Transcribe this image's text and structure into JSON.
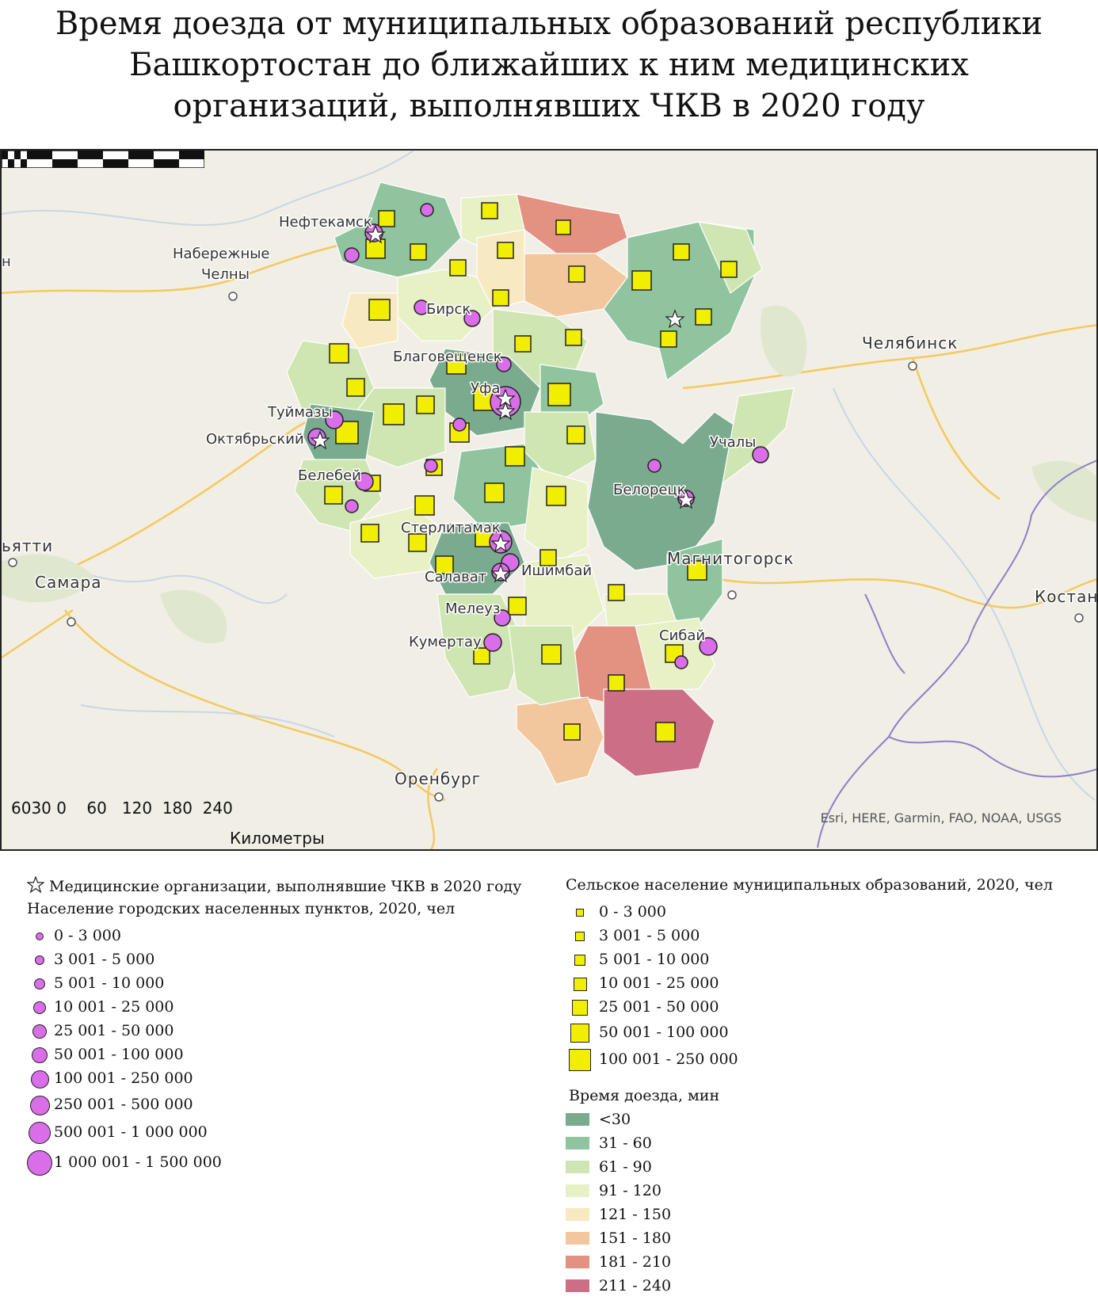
{
  "title": [
    "Время доезда от муниципальных образований республики",
    "Башкортостан до ближайших к ним медицинских",
    "организаций, выполнявших ЧКВ в 2020 году"
  ],
  "map": {
    "city_labels": [
      "Нефтекамск",
      "Набережные",
      "Челны",
      "Бирск",
      "Благовещенск",
      "Уфа",
      "Туймазы",
      "Октябрьский",
      "Белебей",
      "Стерлитамак",
      "Салават",
      "Ишимбай",
      "Мелеуз",
      "Кумертау",
      "Белорецк",
      "Учалы",
      "Сибай",
      "Магнитогорск",
      "Челябинск",
      "Самара",
      "Оренбург",
      "ьятти",
      "Костан",
      "н"
    ],
    "scale_numbers": "6030 0    60   120  180  240",
    "scale_unit": "Километры",
    "attribution": "Esri, HERE, Garmin, FAO, NOAA, USGS",
    "colors": {
      "background": "#f1eee6",
      "road": "#f4c95d",
      "river": "#c9d6e6",
      "border": "#8c7fc9",
      "urban_circle": "#d96ee8",
      "rural_square": "#f2ee00"
    }
  },
  "legend_left": {
    "star_title": "Медицинские организации, выполнявшие ЧКВ в 2020 году",
    "urban_title": "Население городских населенных пунктов, 2020, чел",
    "urban_items": [
      "0 - 3 000",
      "3 001 - 5 000",
      "5 001 - 10 000",
      "10 001 - 25 000",
      "25 001 - 50 000",
      "50 001 - 100 000",
      "100 001 - 250 000",
      "250 001 - 500 000",
      "500 001 - 1 000 000",
      "1 000 001 - 1 500 000"
    ]
  },
  "legend_right": {
    "rural_title": "Сельское население муниципальных образований, 2020, чел",
    "rural_items": [
      "0 - 3 000",
      "3 001 - 5 000",
      "5 001 - 10 000",
      "10 001 - 25 000",
      "25 001 - 50 000",
      "50 001 - 100 000",
      "100 001 - 250 000"
    ],
    "time_title": "Время доезда, мин",
    "time_items": [
      {
        "label": "<30",
        "color": "#7aab8f"
      },
      {
        "label": "31 - 60",
        "color": "#8fc49f"
      },
      {
        "label": "61 - 90",
        "color": "#cfe6b2"
      },
      {
        "label": "91 - 120",
        "color": "#e8f0c6"
      },
      {
        "label": "121 - 150",
        "color": "#f7e9c0"
      },
      {
        "label": "151 - 180",
        "color": "#f2c79e"
      },
      {
        "label": "181 - 210",
        "color": "#e39282"
      },
      {
        "label": "211 - 240",
        "color": "#cd6f84"
      }
    ]
  }
}
